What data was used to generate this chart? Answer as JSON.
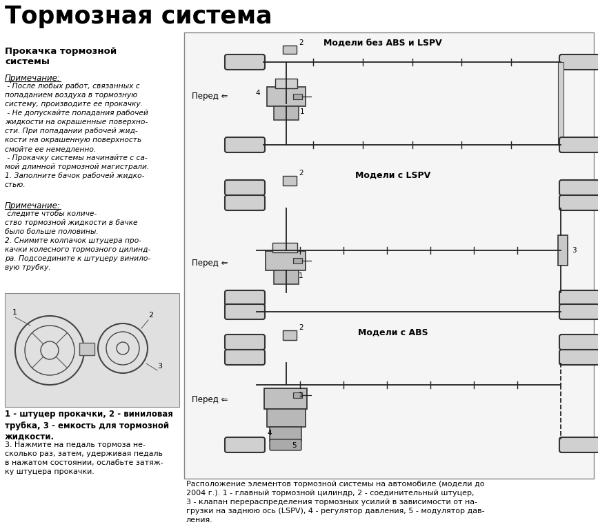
{
  "title": "Тормозная система",
  "left_title": "Прокачка тормозной\nсистемы",
  "bg_color": "#ffffff",
  "text_color": "#000000",
  "line_color": "#222222",
  "note_title": "Примечание:",
  "note_text": " - После любых работ, связанных с\nпопаданием воздуха в тормозную\nсистему, производите ее прокачку.\n - Не допускайте попадания рабочей\nжидкости на окрашенные поверхно-\nсти. При попадании рабочей жид-\nкости на окрашенную поверхность\nсмойте ее немедленно.\n - Прокачку системы начинайте с са-\nмой длинной тормозной магистрали.\n1. Заполните бачок рабочей жидко-\nстью.",
  "note2_title": "Примечание:",
  "note2_text": " следите чтобы количе-\nство тормозной жидкости в бачке\nбыло больше половины.\n2. Снимите колпачок штуцера про-\nкачки колесного тормозного цилинд-\nра. Подсоедините к штуцеру винило-\nвую трубку.",
  "caption1": "1 - штуцер прокачки, 2 - виниловая\nтрубка, 3 - емкость для тормозной\nжидкости.",
  "step3_text": "3. Нажмите на педаль тормоза не-\nсколько раз, затем, удерживая педаль\nв нажатом состоянии, ослабьте затяж-\nку штуцера прокачки.",
  "label1": "Модели без ABS и LSPV",
  "label2": "Модели с LSPV",
  "label3": "Модели с ABS",
  "pered": "Перед ⇐",
  "bottom_caption": "Расположение элементов тормозной системы на автомобиле (модели до\n2004 г.). 1 - главный тормозной цилиндр, 2 - соединительный штуцер,\n3 - клапан перераспределения тормозных усилий в зависимости от на-\nгрузки на заднюю ось (LSPV), 4 - регулятор давления, 5 - модулятор дав-\nления."
}
